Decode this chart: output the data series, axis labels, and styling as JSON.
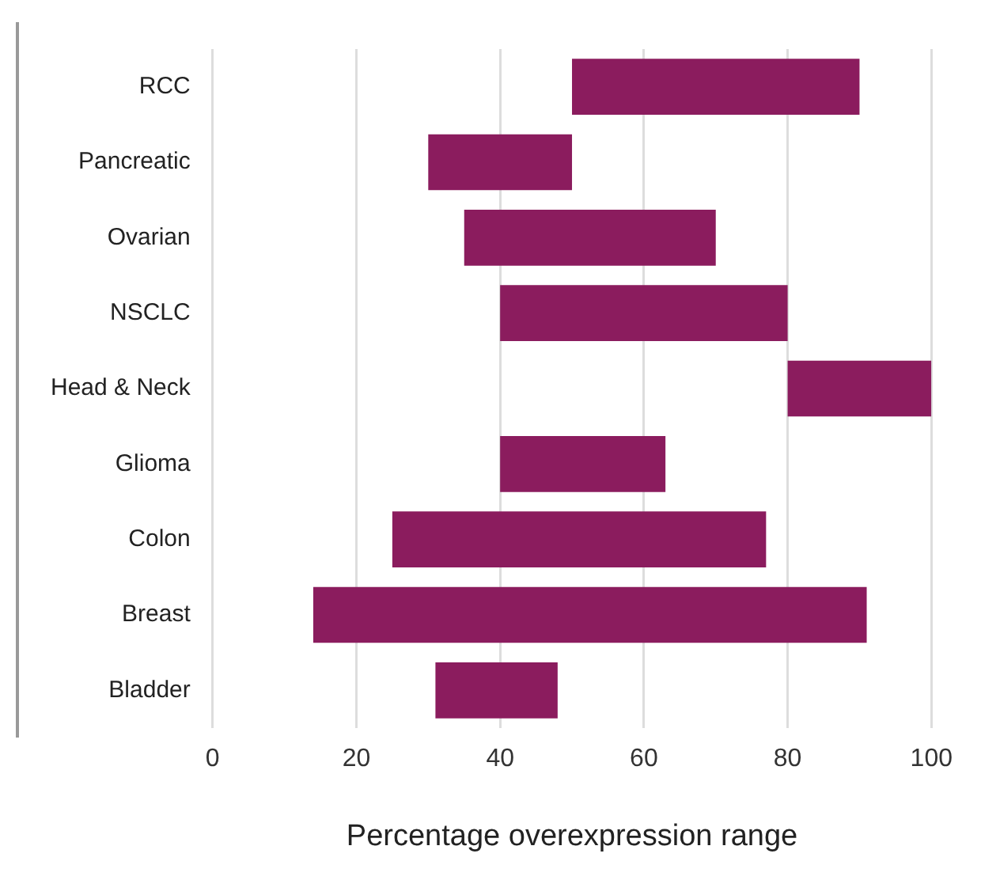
{
  "chart_data": {
    "type": "bar",
    "orientation": "horizontal",
    "xlabel": "Percentage overexpression range",
    "categories": [
      "RCC",
      "Pancreatic",
      "Ovarian",
      "NSCLC",
      "Head & Neck",
      "Glioma",
      "Colon",
      "Breast",
      "Bladder"
    ],
    "base": [
      50,
      30,
      35,
      40,
      80,
      40,
      25,
      14,
      31
    ],
    "values": [
      40,
      20,
      35,
      40,
      20,
      23,
      52,
      77,
      17
    ],
    "color": "#8b1c5e",
    "xlim": [
      0,
      100
    ],
    "xticks": [
      0,
      20,
      40,
      60,
      80,
      100
    ],
    "grid": "x",
    "legend": false
  }
}
